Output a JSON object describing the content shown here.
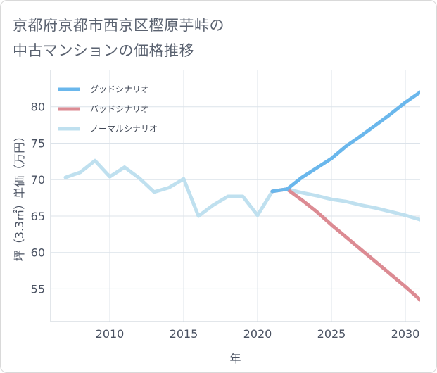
{
  "title": "京都府京都市西京区樫原芋峠の\n中古マンションの価格推移",
  "chart_data": {
    "type": "line",
    "xlabel": "年",
    "ylabel": "坪（3.3㎡）単価（万円）",
    "xlim": [
      2006,
      2031
    ],
    "ylim": [
      50.5,
      85
    ],
    "x_ticks": [
      "2010",
      "2015",
      "2020",
      "2025",
      "2030"
    ],
    "y_ticks": [
      "55",
      "60",
      "65",
      "70",
      "75",
      "80"
    ],
    "grid": true,
    "legend_position": "top-left",
    "series": [
      {
        "name": "グッドシナリオ",
        "color": "#6ab7ec",
        "x": [
          2021,
          2022,
          2023,
          2024,
          2025,
          2026,
          2027,
          2028,
          2029,
          2030,
          2031
        ],
        "y": [
          68.4,
          68.7,
          70.3,
          71.6,
          72.9,
          74.6,
          76.0,
          77.5,
          79.0,
          80.6,
          82.0
        ]
      },
      {
        "name": "バッドシナリオ",
        "color": "#dc8b93",
        "x": [
          2021,
          2022,
          2023,
          2024,
          2025,
          2026,
          2027,
          2028,
          2029,
          2030,
          2031
        ],
        "y": [
          68.4,
          68.7,
          67.2,
          65.6,
          63.8,
          62.1,
          60.4,
          58.7,
          57.0,
          55.3,
          53.5
        ]
      },
      {
        "name": "ノーマルシナリオ",
        "color": "#bfe0ef",
        "x": [
          2007,
          2008,
          2009,
          2010,
          2011,
          2012,
          2013,
          2014,
          2015,
          2016,
          2017,
          2018,
          2019,
          2020,
          2021,
          2022,
          2023,
          2024,
          2025,
          2026,
          2027,
          2028,
          2029,
          2030,
          2031
        ],
        "y": [
          70.3,
          71.0,
          72.6,
          70.4,
          71.7,
          70.2,
          68.3,
          68.9,
          70.1,
          65.0,
          66.5,
          67.7,
          67.7,
          65.1,
          68.4,
          68.7,
          68.2,
          67.8,
          67.3,
          67.0,
          66.5,
          66.1,
          65.6,
          65.1,
          64.5
        ]
      }
    ]
  }
}
